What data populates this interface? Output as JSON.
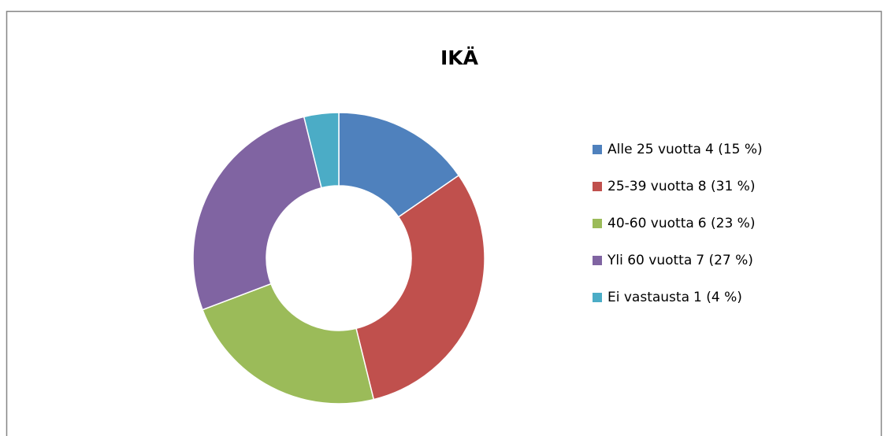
{
  "chart_data": {
    "type": "donut",
    "title": "IKÄ",
    "categories": [
      "Alle 25 vuotta",
      "25-39 vuotta",
      "40-60 vuotta",
      "Yli 60 vuotta",
      "Ei vastausta"
    ],
    "values": [
      4,
      8,
      6,
      7,
      1
    ],
    "value_labels": [
      "4 (15 %)",
      "8 (31 %)",
      "6 (23 %)",
      "7 (27 %)",
      "1 (4 %)"
    ],
    "colors": [
      "#4f81bd",
      "#c0504d",
      "#9bbb59",
      "#8064a2",
      "#4bacc6"
    ],
    "legend": "right"
  }
}
